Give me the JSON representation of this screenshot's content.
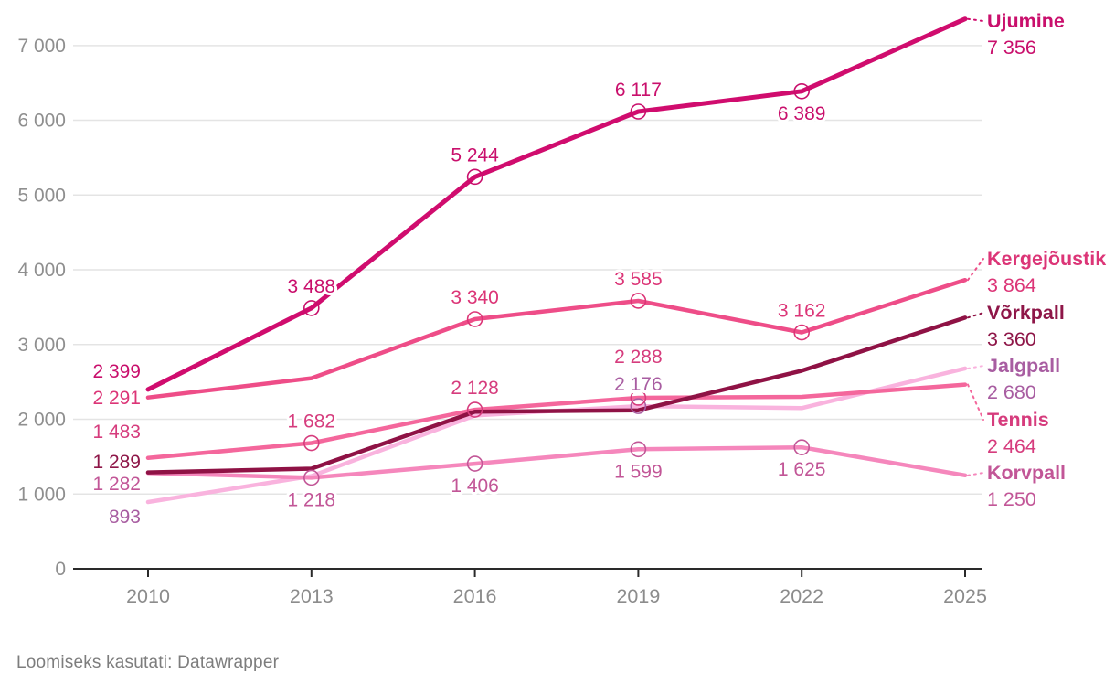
{
  "footer": {
    "text": "Loomiseks kasutati: Datawrapper"
  },
  "chart_data": {
    "type": "line",
    "x_labels": [
      "2010",
      "2013",
      "2016",
      "2019",
      "2022",
      "2025"
    ],
    "x_values": [
      2010,
      2013,
      2016,
      2019,
      2022,
      2025
    ],
    "ylim": [
      0,
      7000
    ],
    "y_tick_step": 1000,
    "y_tick_labels": [
      "0",
      "1 000",
      "2 000",
      "3 000",
      "4 000",
      "5 000",
      "6 000",
      "7 000"
    ],
    "grid": true,
    "legend_position": "right-of-line-ends",
    "axis_color": "#2a2a2a",
    "grid_color": "#e4e4e4",
    "tick_label_color": "#8f8f8f",
    "series": [
      {
        "name": "Jalgpall",
        "line_color": "#f9b3de",
        "label_color": "#a85da1",
        "values": [
          893,
          1240,
          2050,
          2176,
          2150,
          2680
        ],
        "point_labels": [
          "893",
          "",
          "",
          "2 176",
          "",
          ""
        ],
        "label_placement": [
          "left",
          "",
          "",
          "above",
          "",
          ""
        ],
        "markers": [
          false,
          false,
          false,
          true,
          false,
          false
        ],
        "end_label": "2 680"
      },
      {
        "name": "Korvpall",
        "line_color": "#f587bc",
        "label_color": "#c25697",
        "values": [
          1282,
          1218,
          1406,
          1599,
          1625,
          1250
        ],
        "point_labels": [
          "1 282",
          "1 218",
          "1 406",
          "1 599",
          "1 625",
          ""
        ],
        "label_placement": [
          "left",
          "below",
          "below",
          "below",
          "below",
          ""
        ],
        "markers": [
          false,
          true,
          true,
          true,
          true,
          false
        ],
        "end_label": "1 250"
      },
      {
        "name": "Tennis",
        "line_color": "#f4679c",
        "label_color": "#d63c7d",
        "values": [
          1483,
          1682,
          2128,
          2288,
          2300,
          2464
        ],
        "point_labels": [
          "1 483",
          "1 682",
          "2 128",
          "2 288",
          "",
          ""
        ],
        "label_placement": [
          "left",
          "above",
          "above",
          "above-far",
          "",
          ""
        ],
        "markers": [
          false,
          true,
          true,
          true,
          false,
          false
        ],
        "end_label": "2 464"
      },
      {
        "name": "Kergejõustik",
        "line_color": "#ee4d88",
        "label_color": "#dc3577",
        "values": [
          2291,
          2550,
          3340,
          3585,
          3162,
          3864
        ],
        "point_labels": [
          "2 291",
          "",
          "3 340",
          "3 585",
          "3 162",
          ""
        ],
        "label_placement": [
          "left",
          "",
          "above",
          "above",
          "above",
          ""
        ],
        "markers": [
          false,
          false,
          true,
          true,
          true,
          false
        ],
        "end_label": "3 864"
      },
      {
        "name": "Võrkpall",
        "line_color": "#8f1245",
        "label_color": "#8e1648",
        "values": [
          1289,
          1340,
          2100,
          2120,
          2650,
          3360
        ],
        "point_labels": [
          "1 289",
          "",
          "",
          "",
          "",
          ""
        ],
        "label_placement": [
          "left",
          "",
          "",
          "",
          "",
          ""
        ],
        "markers": [
          false,
          false,
          false,
          false,
          false,
          false
        ],
        "end_label": "3 360"
      },
      {
        "name": "Ujumine",
        "line_color": "#d00c6e",
        "label_color": "#c90f6c",
        "values": [
          2399,
          3488,
          5244,
          6117,
          6389,
          7356
        ],
        "point_labels": [
          "2 399",
          "3 488",
          "5 244",
          "6 117",
          "6 389",
          ""
        ],
        "label_placement": [
          "left",
          "above",
          "above",
          "above",
          "below",
          ""
        ],
        "markers": [
          false,
          true,
          true,
          true,
          true,
          false
        ],
        "end_label": "7 356"
      }
    ]
  }
}
